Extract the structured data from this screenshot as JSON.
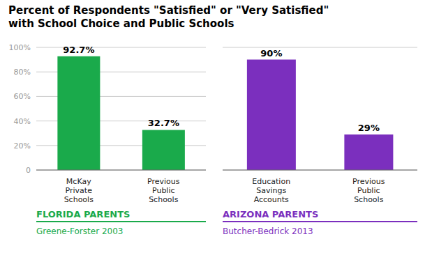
{
  "chart_data": [
    {
      "type": "bar",
      "title": "Percent of Respondents \"Satisfied\" or \"Very Satisfied\"",
      "subtitle": "with School Choice and Public Schools",
      "categories": [
        "McKay\nPrivate\nSchools",
        "Previous\nPublic\nSchools"
      ],
      "values": [
        92.7,
        32.7
      ],
      "value_labels": [
        "92.7%",
        "32.7%"
      ],
      "data_labels": true,
      "color": "#1aaa4b",
      "ylim": [
        0,
        100
      ],
      "yticks": [
        0,
        {
          "value": 20,
          "label": "20%"
        },
        {
          "value": 40,
          "label": "40%"
        },
        {
          "value": 60,
          "label": "60%"
        },
        {
          "value": 80,
          "label": "80%"
        },
        {
          "value": 100,
          "label": "100%"
        }
      ],
      "grid": true,
      "annotations": [
        "FLORIDA PARENTS",
        "Greene-Forster 2003"
      ]
    },
    {
      "type": "bar",
      "categories": [
        "Education\nSavings\nAccounts",
        "Previous\nPublic\nSchools"
      ],
      "values": [
        90,
        29
      ],
      "value_labels": [
        "90%",
        "29%"
      ],
      "data_labels": true,
      "color": "#7b2fbe",
      "ylim": [
        0,
        100
      ],
      "yticks": [
        0,
        {
          "value": 20,
          "label": "20%"
        },
        {
          "value": 40,
          "label": "40%"
        },
        {
          "value": 60,
          "label": "60%"
        },
        {
          "value": 80,
          "label": "80%"
        },
        {
          "value": 100,
          "label": "100%"
        }
      ],
      "grid": true,
      "tick_labels": "x",
      "annotations": [
        "ARIZONA PARENTS",
        "Butcher-Bedrick 2013"
      ]
    }
  ]
}
